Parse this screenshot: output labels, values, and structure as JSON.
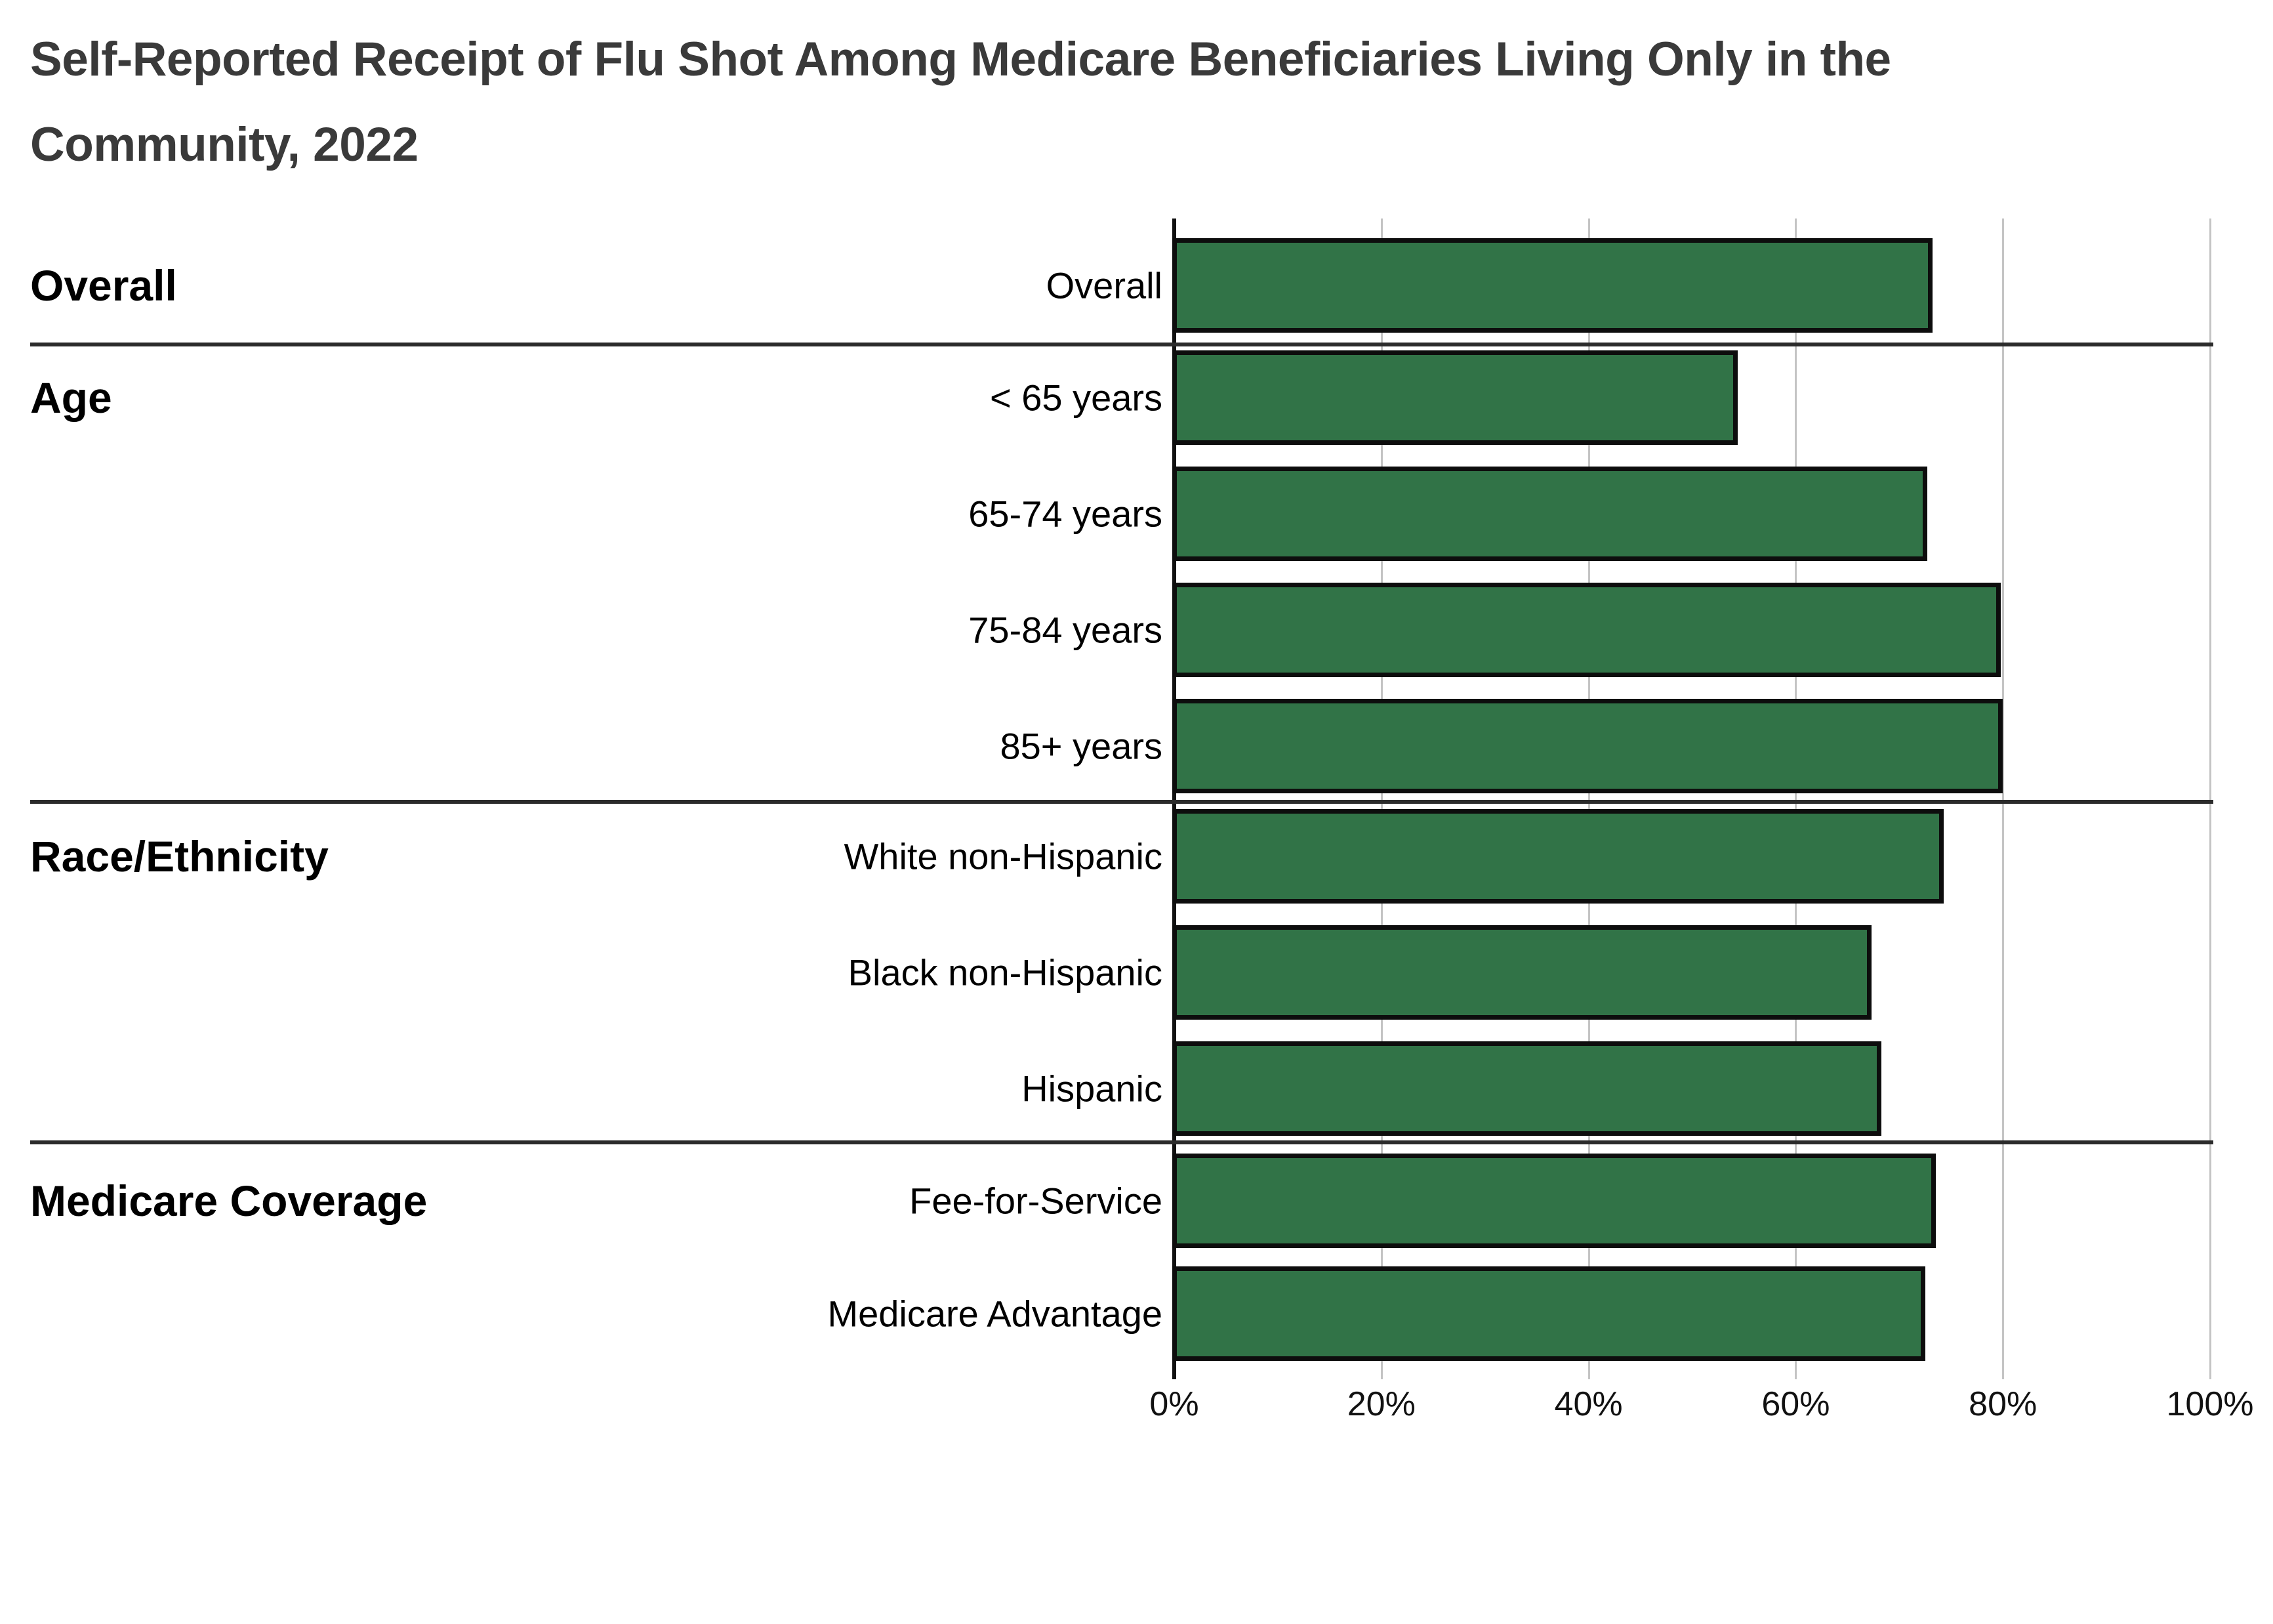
{
  "title": {
    "line1": "Self-Reported Receipt of Flu Shot Among Medicare Beneficiaries Living Only in the",
    "line2": "Community, 2022"
  },
  "chart_data": {
    "type": "bar",
    "orientation": "horizontal",
    "unit": "percent",
    "xlim": [
      0,
      100
    ],
    "x_ticks": [
      "0%",
      "20%",
      "40%",
      "60%",
      "80%",
      "100%"
    ],
    "grid": true,
    "bar_color": "#317347",
    "bar_border_color": "#0d0d0d",
    "gridline_color": "#c4c4c4",
    "axis_line_color": "#111111",
    "separator_color": "#2b2b2b",
    "title_color": "#3a3a3a",
    "groups": [
      {
        "label": "Overall",
        "rows": [
          {
            "label": "Overall",
            "value": 73.2
          }
        ]
      },
      {
        "label": "Age",
        "rows": [
          {
            "label": "< 65 years",
            "value": 54.4
          },
          {
            "label": "65-74 years",
            "value": 72.7
          },
          {
            "label": "75-84 years",
            "value": 79.8
          },
          {
            "label": "85+ years",
            "value": 80.0
          }
        ]
      },
      {
        "label": "Race/Ethnicity",
        "rows": [
          {
            "label": "White non-Hispanic",
            "value": 74.3
          },
          {
            "label": "Black non-Hispanic",
            "value": 67.3
          },
          {
            "label": "Hispanic",
            "value": 68.3
          }
        ]
      },
      {
        "label": "Medicare Coverage",
        "rows": [
          {
            "label": "Fee-for-Service",
            "value": 73.5
          },
          {
            "label": "Medicare Advantage",
            "value": 72.5
          }
        ]
      }
    ]
  }
}
